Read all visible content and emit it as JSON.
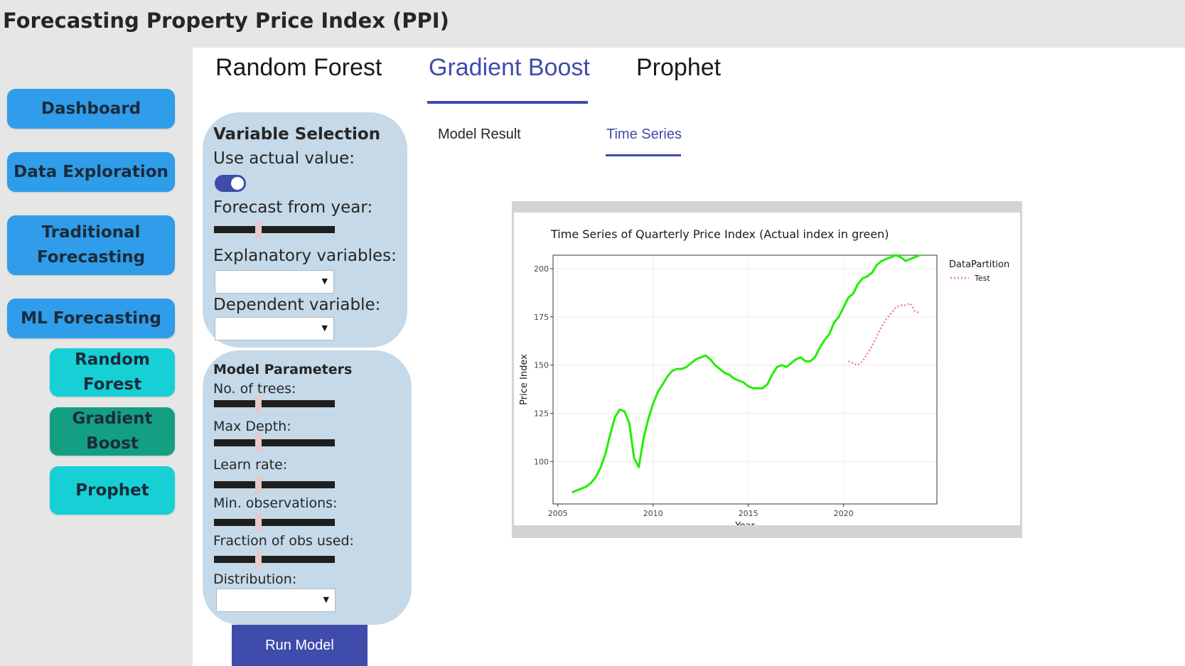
{
  "app": {
    "title": "Forecasting Property Price Index (PPI)"
  },
  "sidebar": {
    "items": [
      {
        "label": "Dashboard"
      },
      {
        "label": "Data Exploration"
      },
      {
        "label": "Traditional Forecasting"
      },
      {
        "label": "ML Forecasting"
      },
      {
        "label": "Random Forest"
      },
      {
        "label": "Gradient Boost"
      },
      {
        "label": "Prophet"
      }
    ]
  },
  "tabs": {
    "main": [
      {
        "label": "Random Forest"
      },
      {
        "label": "Gradient Boost"
      },
      {
        "label": "Prophet"
      }
    ],
    "sub": [
      {
        "label": "Model Result"
      },
      {
        "label": "Time Series"
      }
    ]
  },
  "variable_selection": {
    "title": "Variable Selection",
    "use_actual_label": "Use actual value:",
    "use_actual_value": true,
    "forecast_year_label": "Forecast from year:",
    "explanatory_label": "Explanatory variables:",
    "dependent_label": "Dependent variable:"
  },
  "model_parameters": {
    "title": "Model Parameters",
    "trees_label": "No. of trees:",
    "depth_label": "Max Depth:",
    "learn_rate_label": "Learn rate:",
    "min_obs_label": "Min. observations:",
    "fraction_label": "Fraction of obs used:",
    "distribution_label": "Distribution:"
  },
  "run_button": {
    "label": "Run Model"
  },
  "colors": {
    "accent": "#3f4cab",
    "nav_blue": "#2f9de9",
    "nav_cyan": "#16d0d6",
    "nav_green": "#139f82",
    "panel": "#c5d9e8",
    "actual_line": "#22ee00",
    "test_line": "#f08080"
  },
  "chart_data": {
    "type": "line",
    "title": "Time Series of Quarterly Price Index (Actual index in green)",
    "xlabel": "Year",
    "ylabel": "Price Index",
    "xlim": [
      2004.75,
      2024.9
    ],
    "ylim": [
      78,
      207
    ],
    "xticks": [
      2005,
      2010,
      2015,
      2020
    ],
    "yticks": [
      100,
      125,
      150,
      175,
      200
    ],
    "grid": true,
    "legend": {
      "title": "DataPartition",
      "entries": [
        "Test"
      ],
      "position": "right"
    },
    "series": [
      {
        "name": "Actual",
        "x": [
          2005.75,
          2006.0,
          2006.25,
          2006.5,
          2006.75,
          2007.0,
          2007.25,
          2007.5,
          2007.75,
          2008.0,
          2008.25,
          2008.5,
          2008.75,
          2009.0,
          2009.25,
          2009.5,
          2009.75,
          2010.0,
          2010.25,
          2010.5,
          2010.75,
          2011.0,
          2011.25,
          2011.5,
          2011.75,
          2012.0,
          2012.25,
          2012.5,
          2012.75,
          2013.0,
          2013.25,
          2013.5,
          2013.75,
          2014.0,
          2014.25,
          2014.5,
          2014.75,
          2015.0,
          2015.25,
          2015.5,
          2015.75,
          2016.0,
          2016.25,
          2016.5,
          2016.75,
          2017.0,
          2017.25,
          2017.5,
          2017.75,
          2018.0,
          2018.25,
          2018.5,
          2018.75,
          2019.0,
          2019.25,
          2019.5,
          2019.75,
          2020.0,
          2020.25,
          2020.5,
          2020.75,
          2021.0,
          2021.25,
          2021.5,
          2021.75,
          2022.0,
          2022.25,
          2022.5,
          2022.75,
          2023.0,
          2023.25,
          2023.5,
          2023.75,
          2024.0
        ],
        "y": [
          84,
          85,
          86,
          87,
          89,
          92,
          97,
          104,
          114,
          123,
          127,
          126,
          120,
          102,
          97,
          112,
          122,
          130,
          136,
          140,
          144,
          147,
          148,
          148,
          149,
          151,
          153,
          154,
          155,
          153,
          150,
          148,
          146,
          145,
          143,
          142,
          141,
          139,
          138,
          138,
          138,
          140,
          145,
          149,
          150,
          149,
          151,
          153,
          154,
          152,
          152,
          154,
          159,
          163,
          166,
          172,
          175,
          180,
          185,
          187,
          192,
          195,
          196,
          198,
          202,
          204,
          205,
          206,
          207,
          206,
          204,
          205,
          206,
          207
        ]
      },
      {
        "name": "Test",
        "x": [
          2020.25,
          2020.5,
          2020.75,
          2021.0,
          2021.25,
          2021.5,
          2021.75,
          2022.0,
          2022.25,
          2022.5,
          2022.75,
          2023.0,
          2023.25,
          2023.5,
          2023.75,
          2024.0
        ],
        "y": [
          152,
          151,
          150,
          152,
          156,
          160,
          165,
          170,
          174,
          177,
          180,
          181,
          181,
          182,
          178,
          177
        ]
      }
    ]
  }
}
